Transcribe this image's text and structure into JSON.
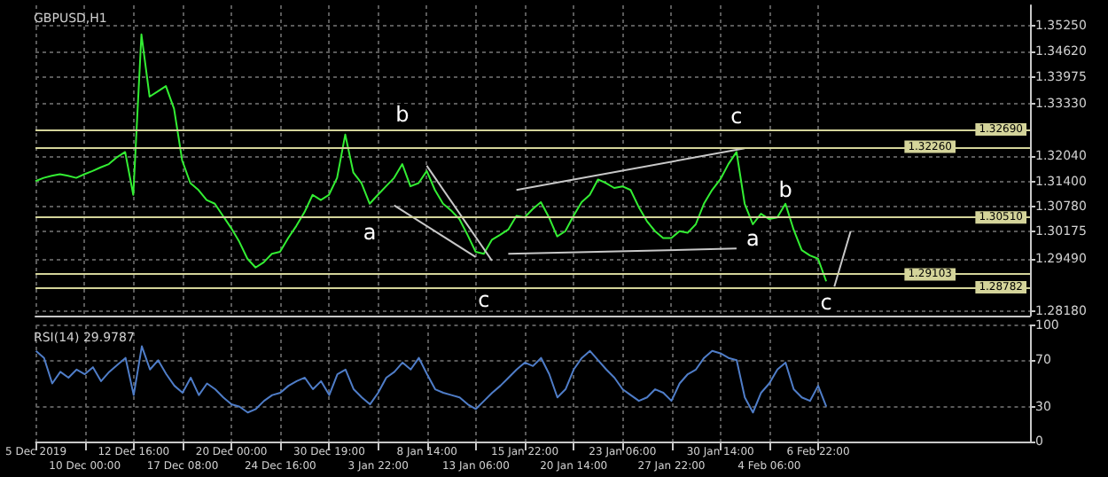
{
  "chart_data": [
    {
      "type": "line",
      "title": "GBPUSD,H1",
      "categories": [
        null,
        null,
        null,
        null,
        null,
        null,
        null,
        null,
        null,
        null,
        null,
        null,
        null,
        null,
        null,
        null,
        null,
        null,
        null,
        null,
        null,
        null,
        null,
        null,
        null,
        null,
        null,
        null,
        null,
        null,
        null,
        null,
        null,
        null,
        null,
        null,
        null,
        null,
        null,
        null,
        null,
        null,
        null,
        null,
        null,
        null,
        null,
        null,
        null,
        null,
        null,
        null,
        null,
        null,
        null,
        null,
        null,
        null,
        null,
        null,
        null,
        null,
        null,
        null,
        null,
        null,
        null,
        null,
        null,
        null,
        null,
        null,
        null,
        null,
        null,
        null,
        null,
        null,
        null,
        null,
        null,
        null,
        null,
        null,
        null,
        null,
        null,
        null,
        null,
        null,
        null,
        null,
        null,
        null,
        null,
        null,
        null,
        null,
        null,
        null,
        null,
        null,
        null,
        null,
        null,
        null,
        null,
        null,
        null,
        null,
        null,
        null,
        null,
        null,
        null,
        null,
        null,
        null,
        null,
        null,
        null,
        null,
        null
      ],
      "series": [
        {
          "color": "#33ee33",
          "values": [
            1.3141,
            1.3149,
            1.3154,
            1.3158,
            1.3154,
            1.3149,
            1.3158,
            1.3166,
            1.3175,
            1.3183,
            1.32,
            1.3213,
            1.3107,
            1.3504,
            1.335,
            1.3363,
            1.3376,
            1.332,
            1.3192,
            1.3136,
            1.3119,
            1.3094,
            1.3085,
            1.3055,
            1.3025,
            1.2991,
            1.2949,
            1.2927,
            1.294,
            1.2961,
            1.2966,
            1.3,
            1.303,
            1.3064,
            1.3107,
            1.3094,
            1.3107,
            1.3149,
            1.3256,
            1.3162,
            1.3136,
            1.3085,
            1.3107,
            1.3128,
            1.3149,
            1.3183,
            1.3128,
            1.3136,
            1.3166,
            1.3119,
            1.3085,
            1.3068,
            1.3047,
            1.3008,
            1.2966,
            1.2961,
            1.2996,
            1.3008,
            1.3021,
            1.3055,
            1.3051,
            1.3072,
            1.3089,
            1.3051,
            1.3004,
            1.3017,
            1.3055,
            1.3089,
            1.3107,
            1.3145,
            1.3136,
            1.3124,
            1.3128,
            1.3119,
            1.3077,
            1.3042,
            1.3017,
            1.3,
            1.3,
            1.3017,
            1.3013,
            1.3034,
            1.3085,
            1.3119,
            1.3145,
            1.3183,
            1.3213,
            1.3085,
            1.3034,
            1.306,
            1.3047,
            1.3051,
            1.3085,
            1.3021,
            1.297,
            1.2957,
            1.2949,
            1.2893,
            null,
            null,
            null,
            null,
            null,
            null,
            null,
            null,
            null,
            null,
            null,
            null,
            null,
            null,
            null,
            null,
            null,
            null,
            null,
            null,
            null,
            null,
            null,
            null,
            null
          ],
          "value_labels": [
            null,
            null,
            null,
            null,
            null,
            null,
            null,
            null,
            null,
            null,
            null,
            null,
            null,
            null,
            null,
            null,
            null,
            null,
            null,
            null,
            null,
            null,
            null,
            null,
            null,
            null,
            null,
            null,
            null,
            null,
            null,
            null,
            null,
            null,
            null,
            null,
            null,
            null,
            null,
            null,
            null,
            "a",
            null,
            null,
            null,
            "b",
            null,
            null,
            null,
            null,
            null,
            null,
            null,
            null,
            null,
            "c",
            null,
            null,
            null,
            null,
            null,
            null,
            null,
            null,
            null,
            null,
            null,
            null,
            null,
            null,
            null,
            null,
            null,
            null,
            null,
            null,
            null,
            null,
            null,
            null,
            null,
            null,
            null,
            null,
            null,
            null,
            "c",
            null,
            "a",
            null,
            null,
            null,
            "b",
            null,
            null,
            null,
            null,
            "c",
            null,
            null,
            null,
            null,
            null,
            null,
            null,
            null,
            null,
            null,
            null,
            null,
            null,
            null,
            null,
            null,
            null,
            null,
            null,
            null,
            null,
            null,
            null,
            null,
            null
          ]
        },
        {
          "color": "#c8c8c8",
          "values": [
            null,
            null,
            null,
            null,
            null,
            null,
            null,
            null,
            null,
            null,
            null,
            null,
            null,
            null,
            null,
            null,
            null,
            null,
            null,
            null,
            null,
            null,
            null,
            null,
            null,
            null,
            null,
            null,
            null,
            null,
            null,
            null,
            null,
            null,
            null,
            null,
            null,
            null,
            null,
            null,
            null,
            null,
            null,
            null,
            null,
            null,
            null,
            null,
            1.3179,
            null,
            null,
            null,
            null,
            null,
            null,
            null,
            1.2944,
            null,
            null,
            null,
            null,
            null,
            null,
            null,
            null,
            null,
            null,
            null,
            null,
            null,
            null,
            null,
            null,
            null,
            null,
            null,
            null,
            null,
            null,
            null,
            null,
            null,
            null,
            null,
            null,
            null,
            null,
            null,
            null,
            null,
            null,
            null,
            null,
            null,
            null,
            null,
            null,
            null,
            null,
            null,
            null,
            null,
            null,
            null,
            null,
            null,
            null,
            null,
            null,
            null,
            null,
            null,
            null,
            null,
            null,
            null,
            null,
            null,
            null,
            null,
            null,
            null,
            null
          ]
        },
        {
          "color": "#c8c8c8",
          "values": [
            null,
            null,
            null,
            null,
            null,
            null,
            null,
            null,
            null,
            null,
            null,
            null,
            null,
            null,
            null,
            null,
            null,
            null,
            null,
            null,
            null,
            null,
            null,
            null,
            null,
            null,
            null,
            null,
            null,
            null,
            null,
            null,
            null,
            null,
            null,
            null,
            null,
            null,
            null,
            null,
            null,
            null,
            null,
            null,
            1.3081,
            null,
            null,
            null,
            null,
            null,
            null,
            null,
            null,
            null,
            1.2953,
            null,
            null,
            null,
            null,
            null,
            null,
            null,
            null,
            null,
            null,
            null,
            null,
            null,
            null,
            null,
            null,
            null,
            null,
            null,
            null,
            null,
            null,
            null,
            null,
            null,
            null,
            null,
            null,
            null,
            null,
            null,
            null,
            null,
            null,
            null,
            null,
            null,
            null,
            null,
            null,
            null,
            null,
            null,
            null,
            null,
            null,
            null,
            null,
            null,
            null,
            null,
            null,
            null,
            null,
            null,
            null,
            null,
            null,
            null,
            null,
            null,
            null,
            null,
            null,
            null,
            null,
            null,
            null
          ]
        },
        {
          "color": "#c8c8c8",
          "values": [
            null,
            null,
            null,
            null,
            null,
            null,
            null,
            null,
            null,
            null,
            null,
            null,
            null,
            null,
            null,
            null,
            null,
            null,
            null,
            null,
            null,
            null,
            null,
            null,
            null,
            null,
            null,
            null,
            null,
            null,
            null,
            null,
            null,
            null,
            null,
            null,
            null,
            null,
            null,
            null,
            null,
            null,
            null,
            null,
            null,
            null,
            null,
            null,
            null,
            null,
            null,
            null,
            null,
            null,
            null,
            null,
            null,
            null,
            null,
            1.3119,
            null,
            null,
            null,
            null,
            null,
            null,
            null,
            null,
            null,
            null,
            null,
            null,
            null,
            null,
            null,
            null,
            null,
            null,
            null,
            null,
            null,
            null,
            null,
            null,
            null,
            null,
            null,
            1.3222,
            null,
            null,
            null,
            null,
            null,
            null,
            null,
            null,
            null,
            null,
            null,
            null,
            null,
            null,
            null,
            null,
            null,
            null,
            null,
            null,
            null,
            null,
            null,
            null,
            null,
            null,
            null,
            null,
            null,
            null,
            null,
            null,
            null,
            null,
            null
          ]
        },
        {
          "color": "#c8c8c8",
          "values": [
            null,
            null,
            null,
            null,
            null,
            null,
            null,
            null,
            null,
            null,
            null,
            null,
            null,
            null,
            null,
            null,
            null,
            null,
            null,
            null,
            null,
            null,
            null,
            null,
            null,
            null,
            null,
            null,
            null,
            null,
            null,
            null,
            null,
            null,
            null,
            null,
            null,
            null,
            null,
            null,
            null,
            null,
            null,
            null,
            null,
            null,
            null,
            null,
            null,
            null,
            null,
            null,
            null,
            null,
            null,
            null,
            null,
            null,
            1.2961,
            null,
            null,
            null,
            null,
            null,
            null,
            null,
            null,
            null,
            null,
            null,
            null,
            null,
            null,
            null,
            null,
            null,
            null,
            null,
            null,
            null,
            null,
            null,
            null,
            null,
            null,
            null,
            1.2974,
            null,
            null,
            null,
            null,
            null,
            null,
            null,
            null,
            null,
            null,
            null,
            null,
            null,
            null,
            null,
            null,
            null,
            null,
            null,
            null,
            null,
            null,
            null,
            null,
            null,
            null,
            null,
            null,
            null,
            null,
            null,
            null,
            null,
            null,
            null,
            null
          ]
        },
        {
          "color": "#c8c8c8",
          "values": [
            null,
            null,
            null,
            null,
            null,
            null,
            null,
            null,
            null,
            null,
            null,
            null,
            null,
            null,
            null,
            null,
            null,
            null,
            null,
            null,
            null,
            null,
            null,
            null,
            null,
            null,
            null,
            null,
            null,
            null,
            null,
            null,
            null,
            null,
            null,
            null,
            null,
            null,
            null,
            null,
            null,
            null,
            null,
            null,
            null,
            null,
            null,
            null,
            null,
            null,
            null,
            null,
            null,
            null,
            null,
            null,
            null,
            null,
            null,
            null,
            null,
            null,
            null,
            null,
            null,
            null,
            null,
            null,
            null,
            null,
            null,
            null,
            null,
            null,
            null,
            null,
            null,
            null,
            null,
            null,
            null,
            null,
            null,
            null,
            null,
            null,
            null,
            null,
            null,
            null,
            null,
            null,
            null,
            null,
            null,
            null,
            null,
            null,
            1.288,
            null,
            1.3017,
            null,
            null,
            null,
            null,
            null,
            null,
            null,
            null,
            null,
            null,
            null,
            null,
            null,
            null,
            null,
            null,
            null,
            null,
            null,
            null,
            null,
            null
          ]
        }
      ],
      "ylim": [
        1.2808,
        1.3576
      ],
      "yticks": [
        {
          "value": 1.3525,
          "label": "1.35250"
        },
        {
          "value": 1.3462,
          "label": "1.34620"
        },
        {
          "value": 1.33975,
          "label": "1.33975"
        },
        {
          "value": 1.3333,
          "label": "1.33330"
        },
        {
          "value": 1.3204,
          "label": "1.32040"
        },
        {
          "value": 1.314,
          "label": "1.31400"
        },
        {
          "value": 1.3078,
          "label": "1.30780"
        },
        {
          "value": 1.30175,
          "label": "1.30175"
        },
        {
          "value": 1.2949,
          "label": "1.29490"
        },
        {
          "value": 1.2818,
          "label": "1.28180"
        }
      ],
      "ref_lines": [
        {
          "axis": "y",
          "value": 1.3269,
          "label": "1.32690",
          "color": "#d4d49a"
        },
        {
          "axis": "y",
          "value": 1.3226,
          "label": "1.32260",
          "color": "#d4d49a"
        },
        {
          "axis": "y",
          "value": 1.3051,
          "label": "1.30510",
          "color": "#d4d49a"
        },
        {
          "axis": "y",
          "value": 1.29103,
          "label": "1.29103",
          "color": "#d4d49a"
        },
        {
          "axis": "y",
          "value": 1.28782,
          "label": "1.28782",
          "color": "#d4d49a"
        }
      ],
      "grid": true,
      "marker": "none",
      "line_style": "solid",
      "tick_labels": "y"
    },
    {
      "type": "line",
      "title": "RSI(14) 29.9787",
      "categories": [
        "5 Dec 2019",
        null,
        null,
        null,
        null,
        null,
        "10 Dec 00:00",
        null,
        null,
        null,
        null,
        null,
        "12 Dec 16:00",
        null,
        null,
        null,
        null,
        null,
        "17 Dec 08:00",
        null,
        null,
        null,
        null,
        null,
        "20 Dec 00:00",
        null,
        null,
        null,
        null,
        null,
        "24 Dec 16:00",
        null,
        null,
        null,
        null,
        null,
        "30 Dec 19:00",
        null,
        null,
        null,
        null,
        null,
        "3 Jan 22:00",
        null,
        null,
        null,
        null,
        null,
        "8 Jan 14:00",
        null,
        null,
        null,
        null,
        null,
        "13 Jan 06:00",
        null,
        null,
        null,
        null,
        null,
        "15 Jan 22:00",
        null,
        null,
        null,
        null,
        null,
        "20 Jan 14:00",
        null,
        null,
        null,
        null,
        null,
        "23 Jan 06:00",
        null,
        null,
        null,
        null,
        null,
        "27 Jan 22:00",
        null,
        null,
        null,
        null,
        null,
        "30 Jan 14:00",
        null,
        null,
        null,
        null,
        null,
        "4 Feb 06:00",
        null,
        null,
        null,
        null,
        null,
        "6 Feb 22:00",
        null,
        null,
        null,
        null,
        null,
        null,
        null,
        null,
        null,
        null,
        null,
        null,
        null,
        null,
        null,
        null,
        null,
        null,
        null,
        null,
        null,
        null,
        null,
        null,
        null,
        null
      ],
      "series": [
        {
          "color": "#4f7dc8",
          "values": [
            78,
            72,
            50,
            60,
            55,
            62,
            58,
            64,
            52,
            60,
            66,
            72,
            40,
            82,
            62,
            70,
            58,
            48,
            42,
            55,
            40,
            50,
            45,
            38,
            32,
            30,
            25,
            28,
            35,
            40,
            42,
            48,
            52,
            55,
            45,
            52,
            40,
            58,
            62,
            45,
            38,
            32,
            42,
            55,
            60,
            68,
            62,
            72,
            58,
            45,
            42,
            40,
            38,
            32,
            28,
            35,
            42,
            48,
            55,
            62,
            68,
            65,
            72,
            58,
            38,
            45,
            62,
            72,
            78,
            70,
            62,
            55,
            45,
            40,
            35,
            38,
            45,
            42,
            35,
            50,
            58,
            62,
            72,
            78,
            76,
            72,
            70,
            38,
            25,
            42,
            50,
            62,
            68,
            45,
            38,
            35,
            48,
            30,
            null,
            null,
            null,
            null,
            null,
            null,
            null,
            null,
            null,
            null,
            null,
            null,
            null,
            null,
            null,
            null,
            null,
            null,
            null,
            null,
            null,
            null,
            null,
            null,
            null
          ]
        }
      ],
      "ylim": [
        0,
        100
      ],
      "yticks": [
        0,
        30,
        70,
        100
      ],
      "grid": true,
      "marker": "none",
      "line_style": "solid"
    }
  ]
}
